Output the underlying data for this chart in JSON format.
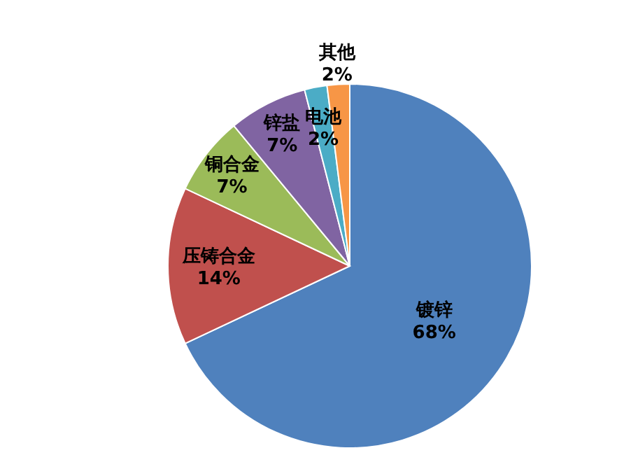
{
  "chart_data": {
    "type": "pie",
    "categories": [
      "镀锌",
      "压铸合金",
      "铜合金",
      "锌盐",
      "电池",
      "其他"
    ],
    "values": [
      68,
      14,
      7,
      7,
      2,
      2
    ],
    "value_labels": [
      "68%",
      "14%",
      "7%",
      "7%",
      "2%",
      "2%"
    ],
    "colors": [
      "#4f81bd",
      "#c0504d",
      "#9bbb59",
      "#8064a2",
      "#4bacc6",
      "#f79646"
    ]
  }
}
